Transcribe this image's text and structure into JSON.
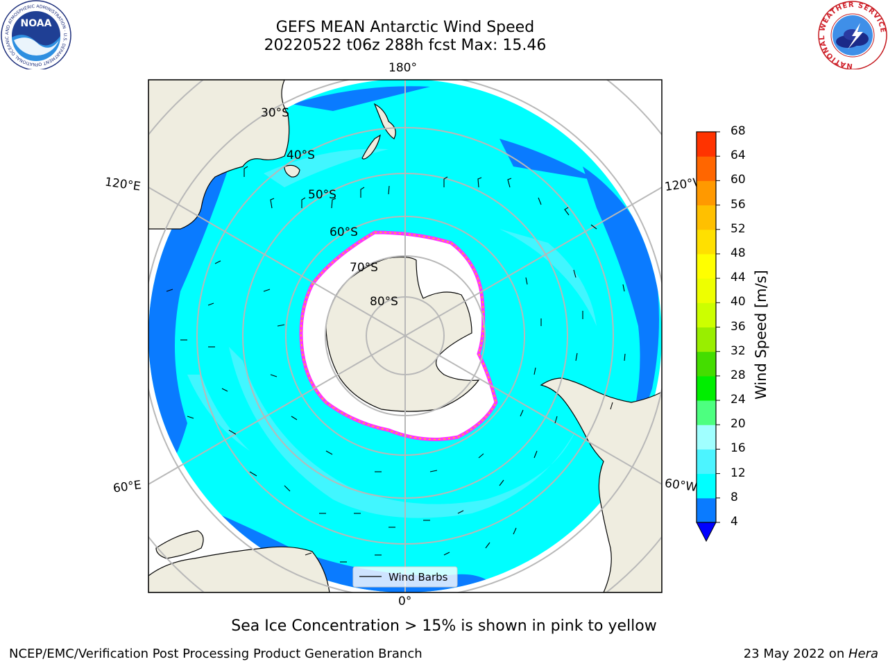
{
  "title": {
    "line1": "GEFS MEAN Antarctic Wind Speed",
    "line2": "20220522 t06z 288h fcst   Max: 15.46"
  },
  "map": {
    "projection": "south-polar-stereographic",
    "lat_labels": [
      "30°S",
      "40°S",
      "50°S",
      "60°S",
      "70°S",
      "80°S"
    ],
    "lon_labels": {
      "top": "180°",
      "bottom": "0°",
      "upper_left": "120°E",
      "upper_right": "120°W",
      "lower_left": "60°E",
      "lower_right": "60°W"
    },
    "legend_label": "Wind Barbs",
    "colors": {
      "ocean_low": "#0a7bff",
      "ocean_mid": "#00ffff",
      "ocean_high": "#4cf4ff",
      "land": "#efede0",
      "ice": "#ffffff",
      "ice_edge_pink": "#ff33ff",
      "ice_edge_yellow": "#ffd000",
      "grid": "#b8b8b8"
    }
  },
  "colorbar": {
    "label": "Wind Speed [m/s]",
    "ticks": [
      "4",
      "8",
      "12",
      "16",
      "20",
      "24",
      "28",
      "32",
      "36",
      "40",
      "44",
      "48",
      "52",
      "56",
      "60",
      "64",
      "68"
    ],
    "colors": [
      "#0a7bff",
      "#00ffff",
      "#4cf4ff",
      "#a0ffff",
      "#4dff80",
      "#00ee00",
      "#44dd00",
      "#99ee00",
      "#ccff00",
      "#eeff00",
      "#ffff00",
      "#ffe000",
      "#ffc000",
      "#ff9900",
      "#ff6600",
      "#ff3300",
      "#ff0000"
    ],
    "under_color": "#0000ff"
  },
  "footer": {
    "note": "Sea Ice Concentration > 15% is shown in pink to yellow",
    "credit_left": "NCEP/EMC/Verification Post Processing Product Generation Branch",
    "date_text": "23 May 2022 on ",
    "host": "Hera"
  },
  "logos": {
    "left": "NOAA",
    "left_ring": "NATIONAL OCEANIC AND ATMOSPHERIC ADMINISTRATION · U.S. DEPARTMENT OF COMMERCE",
    "right_ring": "NATIONAL WEATHER SERVICE"
  }
}
